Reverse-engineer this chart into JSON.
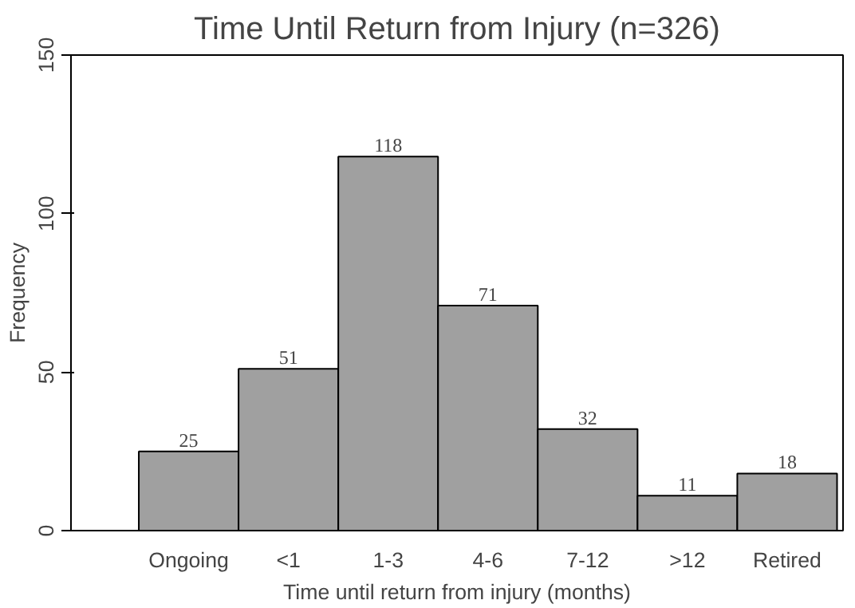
{
  "chart_data": {
    "type": "bar",
    "title": "Time Until Return from Injury (n=326)",
    "xlabel": "Time until return from injury (months)",
    "ylabel": "Frequency",
    "categories": [
      "Ongoing",
      "<1",
      "1-3",
      "4-6",
      "7-12",
      ">12",
      "Retired"
    ],
    "values": [
      25,
      51,
      118,
      71,
      32,
      11,
      18
    ],
    "color": "#a0a0a0",
    "ylim": [
      0,
      150
    ],
    "yticks": [
      0,
      50,
      100,
      150
    ],
    "grid": false,
    "data_labels": true
  }
}
